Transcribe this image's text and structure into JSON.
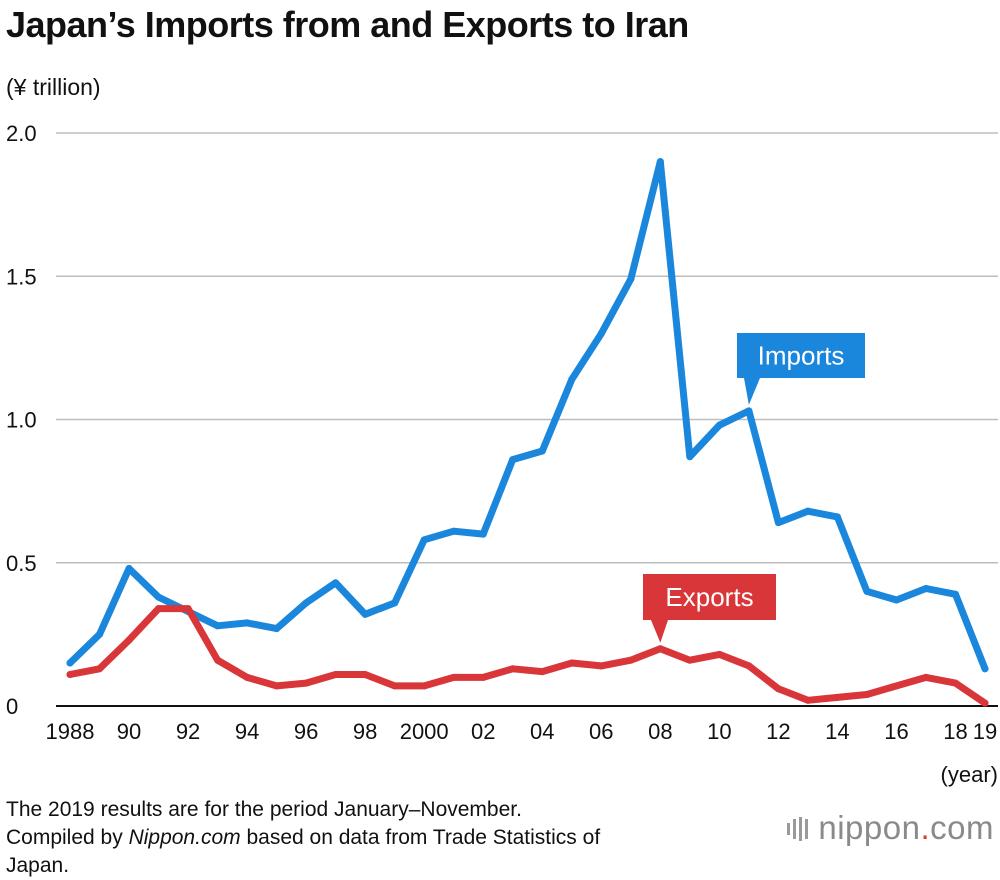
{
  "title": "Japan’s Imports from and Exports to Iran",
  "unit": "(¥ trillion)",
  "footnote": {
    "line1": "The 2019 results are for the period January–November.",
    "line2_prefix": "Compiled by ",
    "line2_source": "Nippon.com",
    "line2_suffix": " based on data from Trade Statistics of",
    "line3": "Japan."
  },
  "logo": {
    "name": "nippon",
    "dot": ".",
    "tld": "com",
    "icon": "bars-icon"
  },
  "colors": {
    "imports": "#1a87dd",
    "exports": "#d9363a",
    "grid": "#bdbdbd",
    "baseline": "#111111"
  },
  "chart_data": {
    "type": "line",
    "x": [
      1988,
      1989,
      1990,
      1991,
      1992,
      1993,
      1994,
      1995,
      1996,
      1997,
      1998,
      1999,
      2000,
      2001,
      2002,
      2003,
      2004,
      2005,
      2006,
      2007,
      2008,
      2009,
      2010,
      2011,
      2012,
      2013,
      2014,
      2015,
      2016,
      2017,
      2018,
      2019
    ],
    "xticks": [
      {
        "x": 1988,
        "label": "1988"
      },
      {
        "x": 1990,
        "label": "90"
      },
      {
        "x": 1992,
        "label": "92"
      },
      {
        "x": 1994,
        "label": "94"
      },
      {
        "x": 1996,
        "label": "96"
      },
      {
        "x": 1998,
        "label": "98"
      },
      {
        "x": 2000,
        "label": "2000"
      },
      {
        "x": 2002,
        "label": "02"
      },
      {
        "x": 2004,
        "label": "04"
      },
      {
        "x": 2006,
        "label": "06"
      },
      {
        "x": 2008,
        "label": "08"
      },
      {
        "x": 2010,
        "label": "10"
      },
      {
        "x": 2012,
        "label": "12"
      },
      {
        "x": 2014,
        "label": "14"
      },
      {
        "x": 2016,
        "label": "16"
      },
      {
        "x": 2018,
        "label": "18"
      },
      {
        "x": 2019,
        "label": "19"
      }
    ],
    "yticks": [
      {
        "y": 0,
        "label": "0"
      },
      {
        "y": 0.5,
        "label": "0.5"
      },
      {
        "y": 1.0,
        "label": "1.0"
      },
      {
        "y": 1.5,
        "label": "1.5"
      },
      {
        "y": 2.0,
        "label": "2.0"
      }
    ],
    "ylim": [
      0,
      2.0
    ],
    "xlabel": "(year)",
    "ylabel": "(¥ trillion)",
    "grid": true,
    "series": [
      {
        "name": "Imports",
        "color": "#1a87dd",
        "values": [
          0.15,
          0.25,
          0.48,
          0.38,
          0.33,
          0.28,
          0.29,
          0.27,
          0.36,
          0.43,
          0.32,
          0.36,
          0.58,
          0.61,
          0.6,
          0.86,
          0.89,
          1.14,
          1.3,
          1.49,
          1.9,
          0.87,
          0.98,
          1.03,
          0.64,
          0.68,
          0.66,
          0.4,
          0.37,
          0.41,
          0.39,
          0.13
        ],
        "callout_at": 2011
      },
      {
        "name": "Exports",
        "color": "#d9363a",
        "values": [
          0.11,
          0.13,
          0.23,
          0.34,
          0.34,
          0.16,
          0.1,
          0.07,
          0.08,
          0.11,
          0.11,
          0.07,
          0.07,
          0.1,
          0.1,
          0.13,
          0.12,
          0.15,
          0.14,
          0.16,
          0.2,
          0.16,
          0.18,
          0.14,
          0.06,
          0.02,
          0.03,
          0.04,
          0.07,
          0.1,
          0.08,
          0.01
        ],
        "callout_at": 2008
      }
    ]
  }
}
